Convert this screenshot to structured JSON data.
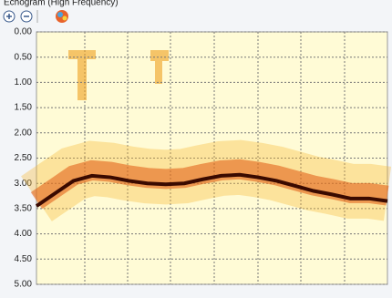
{
  "window_title": "Echogram (High Frequency)",
  "chart_data": {
    "type": "line",
    "categories": [
      null,
      null,
      null,
      null,
      null,
      null,
      null,
      null,
      null,
      null,
      null,
      null,
      null,
      null,
      null,
      null,
      null,
      null,
      null,
      null
    ],
    "series": [
      {
        "color": "#3a0a00",
        "values": [
          3.45,
          3.2,
          2.95,
          2.85,
          2.88,
          2.95,
          3.0,
          3.02,
          3.0,
          2.92,
          2.85,
          2.83,
          2.88,
          2.95,
          3.05,
          3.15,
          3.22,
          3.3,
          3.3,
          3.35
        ]
      }
    ],
    "ylim": [
      0,
      5
    ],
    "yticks": [
      {
        "value": 0,
        "label": "0.00"
      },
      {
        "value": 0.5,
        "label": "0.50"
      },
      {
        "value": 1,
        "label": "1.00"
      },
      {
        "value": 1.5,
        "label": "1.50"
      },
      {
        "value": 2,
        "label": "2.00"
      },
      {
        "value": 2.5,
        "label": "2.50"
      },
      {
        "value": 3,
        "label": "3.00"
      },
      {
        "value": 3.5,
        "label": "3.50"
      },
      {
        "value": 4,
        "label": "4.00"
      },
      {
        "value": 4.5,
        "label": "4.50"
      },
      {
        "value": 5,
        "label": "5.00"
      }
    ],
    "grid": true
  }
}
